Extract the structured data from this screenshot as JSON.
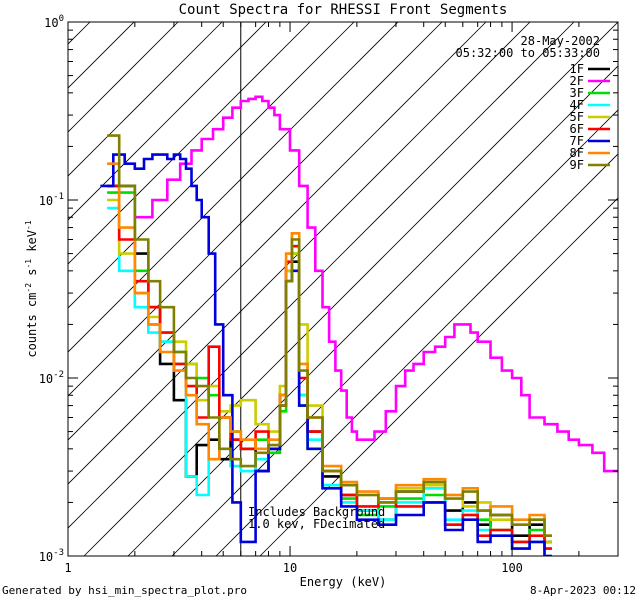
{
  "chart_data": {
    "type": "line",
    "title": "Count Spectra for RHESSI Front Segments",
    "xlabel": "Energy (keV)",
    "ylabel_parts": [
      "counts cm",
      "-2",
      " s",
      "-1",
      " keV",
      "-1"
    ],
    "x_scale": "log",
    "y_scale": "log",
    "xlim": [
      1,
      300
    ],
    "ylim": [
      0.001,
      1
    ],
    "x_ticks": [
      {
        "value": 1,
        "label": "1"
      },
      {
        "value": 10,
        "label": "10"
      },
      {
        "value": 100,
        "label": "100"
      }
    ],
    "y_ticks": [
      {
        "value": 0.001,
        "base": "10",
        "exp": "-3"
      },
      {
        "value": 0.01,
        "base": "10",
        "exp": "-2"
      },
      {
        "value": 0.1,
        "base": "10",
        "exp": "-1"
      },
      {
        "value": 1,
        "base": "10",
        "exp": "0"
      }
    ],
    "hatch_region_max_kev": 6,
    "date_label": "28-May-2002",
    "time_label": "05:32:00 to 05:33:00",
    "annotation_lines": [
      "Includes Background",
      "1.0 kev, FDecimated"
    ],
    "legend_position": "top-right",
    "footer_left": "Generated by hsi_min_spectra_plot.pro",
    "footer_right": "8-Apr-2023 00:12",
    "series": [
      {
        "name": "1F",
        "color": "#000000",
        "x": [
          1.5,
          1.7,
          2.0,
          2.3,
          2.6,
          3.0,
          3.4,
          3.8,
          4.3,
          4.8,
          5.4,
          6.0,
          7.0,
          8.0,
          9.0,
          9.6,
          10.2,
          11,
          12,
          14,
          17,
          20,
          25,
          30,
          40,
          50,
          60,
          70,
          80,
          100,
          120,
          140
        ],
        "y": [
          0.12,
          0.12,
          0.05,
          0.025,
          0.012,
          0.0075,
          0.0028,
          0.0042,
          0.0045,
          0.0035,
          0.0045,
          0.004,
          0.003,
          0.004,
          0.008,
          0.04,
          0.045,
          0.008,
          0.005,
          0.0028,
          0.0022,
          0.0018,
          0.0016,
          0.0023,
          0.0025,
          0.0018,
          0.002,
          0.0015,
          0.0017,
          0.0013,
          0.0015,
          0.0012
        ]
      },
      {
        "name": "2F",
        "color": "#ff00ff",
        "x": [
          2.0,
          2.4,
          2.8,
          3.2,
          3.6,
          4.0,
          4.5,
          5.0,
          5.5,
          6.0,
          6.5,
          7.0,
          7.5,
          8.0,
          8.5,
          9.0,
          10.0,
          11.0,
          12.0,
          13.0,
          14.0,
          15.0,
          16.0,
          17.0,
          18.0,
          19.0,
          20.0,
          22.0,
          24.0,
          27.0,
          30.0,
          33.0,
          36.0,
          40.0,
          45.0,
          50.0,
          55.0,
          60.0,
          65.0,
          70.0,
          80.0,
          90.0,
          100.0,
          110.0,
          120.0,
          140.0,
          160.0,
          180.0,
          200.0,
          230.0,
          260.0,
          290.0
        ],
        "y": [
          0.08,
          0.1,
          0.13,
          0.16,
          0.19,
          0.22,
          0.25,
          0.29,
          0.33,
          0.36,
          0.37,
          0.38,
          0.36,
          0.33,
          0.3,
          0.25,
          0.19,
          0.12,
          0.07,
          0.04,
          0.025,
          0.016,
          0.011,
          0.0085,
          0.006,
          0.005,
          0.0045,
          0.0045,
          0.005,
          0.0065,
          0.009,
          0.011,
          0.012,
          0.014,
          0.015,
          0.017,
          0.02,
          0.02,
          0.018,
          0.016,
          0.013,
          0.011,
          0.01,
          0.008,
          0.006,
          0.0055,
          0.005,
          0.0045,
          0.0042,
          0.0038,
          0.003,
          0.003
        ]
      },
      {
        "name": "3F",
        "color": "#00dd00",
        "x": [
          1.5,
          1.7,
          2.0,
          2.3,
          2.6,
          3.0,
          3.4,
          3.8,
          4.3,
          4.8,
          5.4,
          6.0,
          7.0,
          8.0,
          9.0,
          9.6,
          10.2,
          11,
          12,
          14,
          17,
          20,
          25,
          30,
          40,
          50,
          60,
          70,
          80,
          100,
          120,
          140
        ],
        "y": [
          0.11,
          0.11,
          0.04,
          0.02,
          0.016,
          0.014,
          0.012,
          0.01,
          0.008,
          0.006,
          0.005,
          0.004,
          0.0045,
          0.0038,
          0.0065,
          0.035,
          0.05,
          0.007,
          0.004,
          0.0025,
          0.0021,
          0.0017,
          0.0019,
          0.0021,
          0.0022,
          0.0015,
          0.0017,
          0.0016,
          0.0014,
          0.0012,
          0.0014,
          0.0011
        ]
      },
      {
        "name": "4F",
        "color": "#00ffff",
        "x": [
          1.5,
          1.7,
          2.0,
          2.3,
          2.6,
          3.0,
          3.4,
          3.8,
          4.3,
          4.8,
          5.4,
          6.0,
          7.0,
          8.0,
          9.0,
          9.6,
          10.2,
          11,
          12,
          14,
          17,
          20,
          25,
          30,
          40,
          50,
          60,
          70,
          80,
          100,
          120,
          140
        ],
        "y": [
          0.09,
          0.04,
          0.025,
          0.018,
          0.016,
          0.012,
          0.0028,
          0.0022,
          0.0035,
          0.004,
          0.0032,
          0.003,
          0.0035,
          0.004,
          0.007,
          0.04,
          0.055,
          0.008,
          0.0045,
          0.0025,
          0.002,
          0.0018,
          0.0016,
          0.002,
          0.0024,
          0.0016,
          0.0018,
          0.0014,
          0.0013,
          0.0011,
          0.0012,
          0.001
        ]
      },
      {
        "name": "5F",
        "color": "#cccc00",
        "x": [
          1.5,
          1.7,
          2.0,
          2.3,
          2.6,
          3.0,
          3.4,
          3.8,
          4.3,
          4.8,
          5.4,
          6.0,
          7.0,
          8.0,
          9.0,
          9.6,
          10.2,
          11,
          12,
          14,
          17,
          20,
          25,
          30,
          40,
          50,
          60,
          70,
          80,
          100,
          120,
          140
        ],
        "y": [
          0.1,
          0.05,
          0.03,
          0.022,
          0.018,
          0.016,
          0.012,
          0.0075,
          0.009,
          0.0065,
          0.007,
          0.0075,
          0.0055,
          0.005,
          0.009,
          0.04,
          0.05,
          0.02,
          0.007,
          0.003,
          0.0025,
          0.0022,
          0.002,
          0.0024,
          0.0025,
          0.0022,
          0.0019,
          0.002,
          0.0016,
          0.0015,
          0.0016,
          0.0012
        ]
      },
      {
        "name": "6F",
        "color": "#ff0000",
        "x": [
          1.5,
          1.7,
          2.0,
          2.3,
          2.6,
          3.0,
          3.4,
          3.8,
          4.3,
          4.8,
          5.4,
          6.0,
          7.0,
          8.0,
          9.0,
          9.6,
          10.2,
          11,
          12,
          14,
          17,
          20,
          25,
          30,
          40,
          50,
          60,
          70,
          80,
          100,
          120,
          140
        ],
        "y": [
          0.12,
          0.06,
          0.035,
          0.025,
          0.018,
          0.012,
          0.009,
          0.006,
          0.015,
          0.006,
          0.0045,
          0.004,
          0.005,
          0.004,
          0.007,
          0.045,
          0.055,
          0.01,
          0.005,
          0.003,
          0.0022,
          0.0019,
          0.0021,
          0.0019,
          0.002,
          0.0015,
          0.0017,
          0.0013,
          0.0014,
          0.0012,
          0.0013,
          0.0011
        ]
      },
      {
        "name": "7F",
        "color": "#0000dd",
        "x": [
          1.4,
          1.6,
          1.8,
          2.0,
          2.2,
          2.4,
          2.6,
          2.8,
          3.0,
          3.2,
          3.4,
          3.6,
          3.8,
          4.0,
          4.3,
          4.6,
          5.0,
          5.5,
          6.0,
          7.0,
          8.0,
          9.0,
          9.6,
          10.2,
          11,
          12,
          14,
          17,
          20,
          25,
          30,
          40,
          50,
          60,
          70,
          80,
          100,
          120,
          140
        ],
        "y": [
          0.12,
          0.18,
          0.16,
          0.15,
          0.17,
          0.18,
          0.18,
          0.17,
          0.18,
          0.17,
          0.15,
          0.12,
          0.1,
          0.08,
          0.05,
          0.02,
          0.008,
          0.002,
          0.0012,
          0.003,
          0.004,
          0.008,
          0.035,
          0.04,
          0.007,
          0.004,
          0.0024,
          0.0019,
          0.0016,
          0.0015,
          0.0017,
          0.002,
          0.0014,
          0.0016,
          0.0012,
          0.0013,
          0.0011,
          0.0012,
          0.001
        ]
      },
      {
        "name": "8F",
        "color": "#ff8800",
        "x": [
          1.5,
          1.7,
          2.0,
          2.3,
          2.6,
          3.0,
          3.4,
          3.8,
          4.3,
          4.8,
          5.4,
          6.0,
          7.0,
          8.0,
          9.0,
          9.6,
          10.2,
          11,
          12,
          14,
          17,
          20,
          25,
          30,
          40,
          50,
          60,
          70,
          80,
          100,
          120,
          140
        ],
        "y": [
          0.16,
          0.07,
          0.03,
          0.02,
          0.014,
          0.011,
          0.008,
          0.0055,
          0.0035,
          0.006,
          0.005,
          0.0045,
          0.004,
          0.0045,
          0.008,
          0.05,
          0.065,
          0.012,
          0.006,
          0.0032,
          0.0026,
          0.0023,
          0.0021,
          0.0025,
          0.0027,
          0.0022,
          0.0024,
          0.0018,
          0.0019,
          0.0016,
          0.0017,
          0.0013
        ]
      },
      {
        "name": "9F",
        "color": "#808000",
        "x": [
          1.5,
          1.7,
          2.0,
          2.3,
          2.6,
          3.0,
          3.4,
          3.8,
          4.3,
          4.8,
          5.4,
          6.0,
          7.0,
          8.0,
          9.0,
          9.6,
          10.2,
          11,
          12,
          14,
          17,
          20,
          25,
          30,
          40,
          50,
          60,
          70,
          80,
          100,
          120,
          140
        ],
        "y": [
          0.23,
          0.12,
          0.06,
          0.035,
          0.025,
          0.014,
          0.01,
          0.009,
          0.006,
          0.004,
          0.0035,
          0.0032,
          0.0038,
          0.0042,
          0.007,
          0.035,
          0.06,
          0.011,
          0.006,
          0.003,
          0.0025,
          0.0022,
          0.002,
          0.0023,
          0.0026,
          0.0021,
          0.0023,
          0.0018,
          0.0017,
          0.0015,
          0.0016,
          0.0013
        ]
      }
    ]
  }
}
